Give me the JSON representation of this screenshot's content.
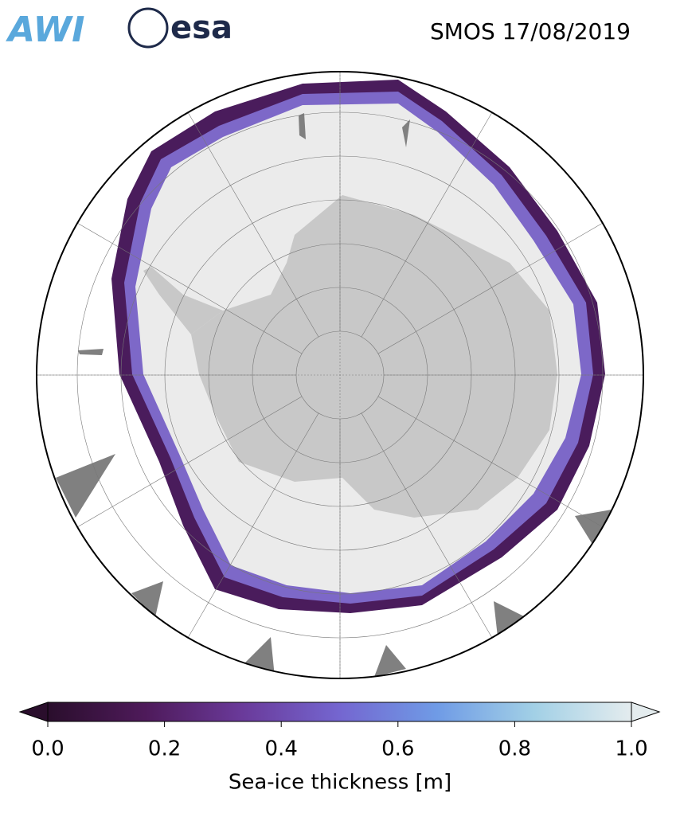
{
  "header": {
    "logos": [
      "AWI",
      "esa"
    ],
    "title": "SMOS 17/08/2019"
  },
  "colorbar": {
    "label": "Sea-ice thickness [m]",
    "lim": [
      0,
      1
    ],
    "ticks": [
      {
        "value": 0,
        "label": "0.0"
      },
      {
        "value": 0.2,
        "label": "0.2"
      },
      {
        "value": 0.4,
        "label": "0.4"
      },
      {
        "value": 0.6,
        "label": "0.6"
      },
      {
        "value": 0.8,
        "label": "0.8"
      },
      {
        "value": 1,
        "label": "1.0"
      }
    ],
    "colors": [
      "#2a0e2c",
      "#4e1a5a",
      "#6a3a9a",
      "#7466d0",
      "#6f9be6",
      "#a2d0e6",
      "#e4ecee"
    ]
  }
}
